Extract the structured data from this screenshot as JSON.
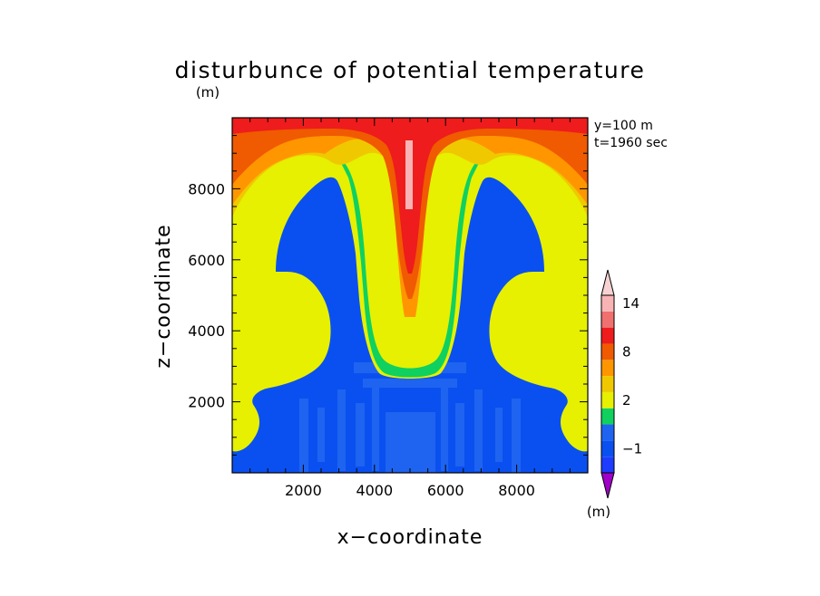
{
  "chart_data": {
    "type": "heatmap",
    "title": "disturbunce of potential temperature",
    "title_unit": "(m)",
    "xlabel": "x−coordinate",
    "ylabel": "z−coordinate",
    "xlim": [
      0,
      10000
    ],
    "ylim": [
      0,
      10000
    ],
    "x_major_ticks": [
      2000,
      4000,
      6000,
      8000
    ],
    "y_major_ticks": [
      2000,
      4000,
      6000,
      8000
    ],
    "x_tick_labels": [
      "2000",
      "4000",
      "6000",
      "8000"
    ],
    "y_tick_labels": [
      "2000",
      "4000",
      "6000",
      "8000"
    ],
    "annotations": [
      "y=100 m",
      "t=1960 sec"
    ],
    "colorbar": {
      "levels": [
        -2,
        -1,
        0,
        1,
        2,
        4,
        6,
        8,
        10,
        12,
        14,
        16
      ],
      "labels": [
        {
          "value": 14,
          "text": "14"
        },
        {
          "value": 8,
          "text": "8"
        },
        {
          "value": 2,
          "text": "2"
        },
        {
          "value": -1,
          "text": "−1"
        }
      ],
      "unit": "(m)",
      "colors": [
        "#a000c8",
        "#1e3cff",
        "#0a50f0",
        "#1e64f0",
        "#10d060",
        "#e6f000",
        "#f0c800",
        "#ff9600",
        "#f05a00",
        "#ee1c1c",
        "#f07070",
        "#f8b4b4",
        "#f8d2d2"
      ]
    }
  }
}
